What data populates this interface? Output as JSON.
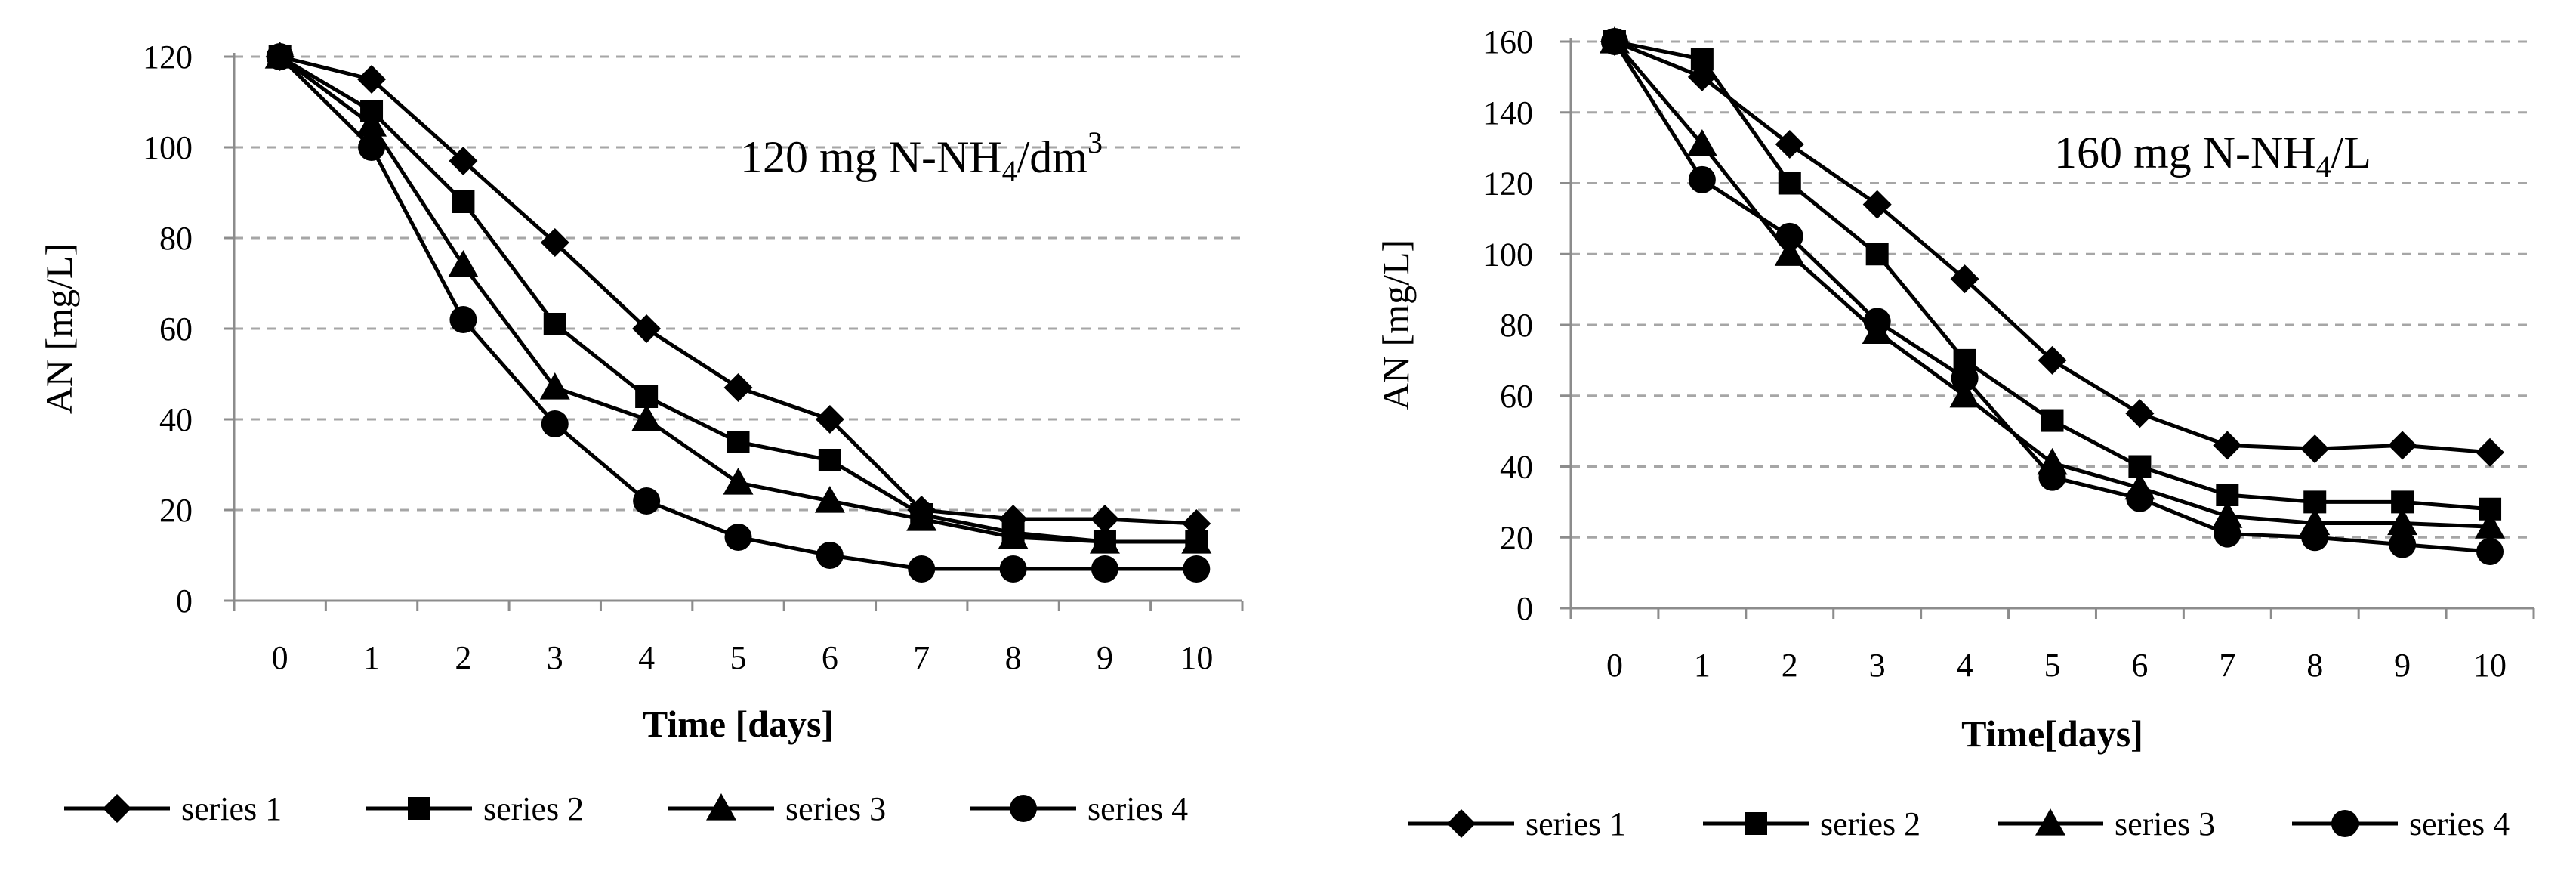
{
  "colors": {
    "line": "#000000",
    "grid": "#a6a6a6",
    "background": "#ffffff"
  },
  "chart_data": [
    {
      "type": "line",
      "title": "",
      "annotation": {
        "prefix": "120 mg N-NH",
        "sub": "4",
        "middle": "/dm",
        "sup": "3"
      },
      "xlabel": "Time [days]",
      "ylabel": "AN [mg/L]",
      "x": [
        0,
        1,
        2,
        3,
        4,
        5,
        6,
        7,
        8,
        9,
        10
      ],
      "x_tick_labels": [
        "0",
        "1",
        "2",
        "3",
        "4",
        "5",
        "6",
        "7",
        "8",
        "9",
        "10"
      ],
      "ylim": [
        0,
        120
      ],
      "y_ticks": [
        0,
        20,
        40,
        60,
        80,
        100,
        120
      ],
      "y_tick_labels": [
        "0",
        "20",
        "40",
        "60",
        "80",
        "100",
        "120"
      ],
      "grid": true,
      "legend_position": "bottom",
      "series": [
        {
          "name": "series 1",
          "marker": "diamond",
          "values": [
            120,
            115,
            97,
            79,
            60,
            47,
            40,
            20,
            18,
            18,
            17
          ]
        },
        {
          "name": "series 2",
          "marker": "square",
          "values": [
            120,
            108,
            88,
            61,
            45,
            35,
            31,
            19,
            15,
            13,
            13
          ]
        },
        {
          "name": "series 3",
          "marker": "triangle",
          "values": [
            120,
            105,
            74,
            47,
            40,
            26,
            22,
            18,
            14,
            13,
            13
          ]
        },
        {
          "name": "series 4",
          "marker": "circle",
          "values": [
            120,
            100,
            62,
            39,
            22,
            14,
            10,
            7,
            7,
            7,
            7
          ]
        }
      ]
    },
    {
      "type": "line",
      "title": "",
      "annotation": {
        "prefix": "160 mg N-NH",
        "sub": "4",
        "middle": "/L",
        "sup": ""
      },
      "xlabel": "Time[days]",
      "ylabel": "AN [mg/L]",
      "x": [
        0,
        1,
        2,
        3,
        4,
        5,
        6,
        7,
        8,
        9,
        10
      ],
      "x_tick_labels": [
        "0",
        "1",
        "2",
        "3",
        "4",
        "5",
        "6",
        "7",
        "8",
        "9",
        "10"
      ],
      "ylim": [
        0,
        160
      ],
      "y_ticks": [
        0,
        20,
        40,
        60,
        80,
        100,
        120,
        140,
        160
      ],
      "y_tick_labels": [
        "0",
        "20",
        "40",
        "60",
        "80",
        "100",
        "120",
        "140",
        "160"
      ],
      "grid": true,
      "legend_position": "bottom",
      "series": [
        {
          "name": "series 1",
          "marker": "diamond",
          "values": [
            160,
            150,
            131,
            114,
            93,
            70,
            55,
            46,
            45,
            46,
            44
          ]
        },
        {
          "name": "series 2",
          "marker": "square",
          "values": [
            160,
            155,
            120,
            100,
            70,
            53,
            40,
            32,
            30,
            30,
            28
          ]
        },
        {
          "name": "series 3",
          "marker": "triangle",
          "values": [
            160,
            131,
            100,
            78,
            60,
            41,
            34,
            26,
            24,
            24,
            23
          ]
        },
        {
          "name": "series 4",
          "marker": "circle",
          "values": [
            160,
            121,
            105,
            81,
            65,
            37,
            31,
            21,
            20,
            18,
            16
          ]
        }
      ]
    }
  ]
}
